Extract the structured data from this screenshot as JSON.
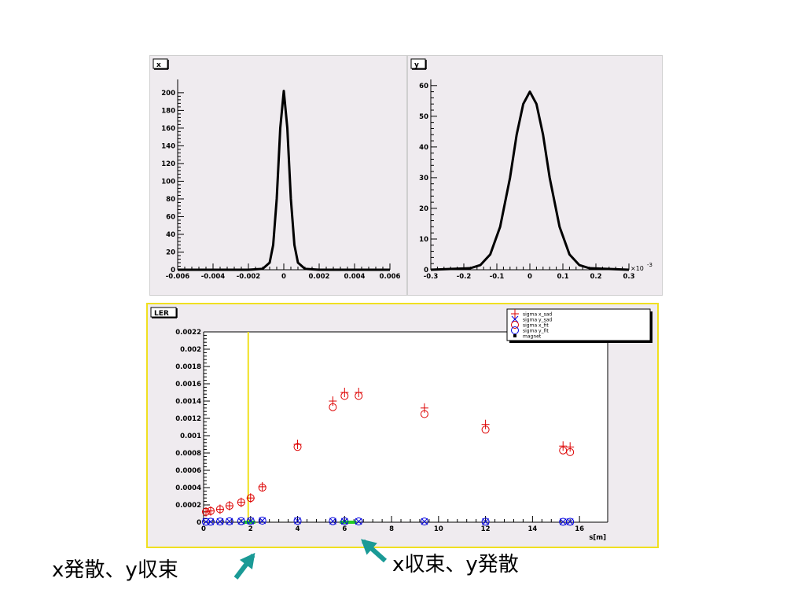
{
  "chart_data": [
    {
      "type": "line",
      "title": "x",
      "xlim": [
        -0.006,
        0.006
      ],
      "ylim": [
        0,
        215
      ],
      "x_ticks": [
        -0.006,
        -0.004,
        -0.002,
        0,
        0.002,
        0.004,
        0.006
      ],
      "x_tick_labels": [
        "-0.006",
        "-0.004",
        "-0.002",
        "0",
        "0.002",
        "0.004",
        "0.006"
      ],
      "y_ticks": [
        0,
        20,
        40,
        60,
        80,
        100,
        120,
        140,
        160,
        180,
        200
      ],
      "y_tick_labels": [
        "0",
        "20",
        "40",
        "60",
        "80",
        "100",
        "120",
        "140",
        "160",
        "180",
        "200"
      ],
      "series": [
        {
          "color": "#000000",
          "x": [
            -0.006,
            -0.002,
            -0.0012,
            -0.0008,
            -0.0006,
            -0.0004,
            -0.0002,
            0,
            0.0002,
            0.0004,
            0.0006,
            0.0008,
            0.0012,
            0.002,
            0.006
          ],
          "y": [
            0,
            0,
            1,
            8,
            28,
            80,
            160,
            202,
            160,
            80,
            28,
            8,
            1,
            0,
            0
          ]
        }
      ]
    },
    {
      "type": "line",
      "title": "y",
      "x_multiplier": "×10",
      "x_multiplier_exp": "-3",
      "xlim": [
        -0.3,
        0.3
      ],
      "ylim": [
        0,
        62
      ],
      "x_ticks": [
        -0.3,
        -0.2,
        -0.1,
        0,
        0.1,
        0.2,
        0.3
      ],
      "x_tick_labels": [
        "-0.3",
        "-0.2",
        "-0.1",
        "0",
        "0.1",
        "0.2",
        "0.3"
      ],
      "y_ticks": [
        0,
        10,
        20,
        30,
        40,
        50,
        60
      ],
      "y_tick_labels": [
        "0",
        "10",
        "20",
        "30",
        "40",
        "50",
        "60"
      ],
      "series": [
        {
          "color": "#000000",
          "x": [
            -0.3,
            -0.18,
            -0.15,
            -0.12,
            -0.09,
            -0.06,
            -0.04,
            -0.02,
            0,
            0.02,
            0.04,
            0.06,
            0.09,
            0.12,
            0.15,
            0.18,
            0.3
          ],
          "y": [
            0,
            0.5,
            1.5,
            5,
            14,
            30,
            44,
            54,
            58,
            54,
            44,
            30,
            14,
            5,
            1.5,
            0.5,
            0
          ]
        }
      ]
    },
    {
      "type": "scatter",
      "title": "LER",
      "xlabel": "s[m]",
      "ylabel": "",
      "xlim": [
        0,
        17.2
      ],
      "ylim": [
        0,
        0.0022
      ],
      "x_ticks": [
        0,
        2,
        4,
        6,
        8,
        10,
        12,
        14,
        16
      ],
      "x_tick_labels": [
        "0",
        "2",
        "4",
        "6",
        "8",
        "10",
        "12",
        "14",
        "16"
      ],
      "y_ticks": [
        0,
        0.0002,
        0.0004,
        0.0006,
        0.0008,
        0.001,
        0.0012,
        0.0014,
        0.0016,
        0.0018,
        0.002,
        0.0022
      ],
      "y_tick_labels": [
        "0",
        "0.0002",
        "0.0004",
        "0.0006",
        "0.0008",
        "0.001",
        "0.0012",
        "0.0014",
        "0.0016",
        "0.0018",
        "0.002",
        "0.0022"
      ],
      "vertical_line": {
        "x": 1.9,
        "color": "#f0e020"
      },
      "magnet_segments": [
        [
          1.7,
          2.2
        ],
        [
          5.8,
          6.5
        ]
      ],
      "legend": {
        "position": "top-right",
        "entries": [
          {
            "label": "sigma x_sad",
            "marker": "plus",
            "color": "#dd0000"
          },
          {
            "label": "sigma y_sad",
            "marker": "cross",
            "color": "#0000dd"
          },
          {
            "label": "sigma x_fit",
            "marker": "circle",
            "color": "#dd0000"
          },
          {
            "label": "sigma y_fit",
            "marker": "circle",
            "color": "#0000dd"
          },
          {
            "label": "magnet",
            "marker": "square",
            "color": "#000000"
          }
        ]
      },
      "series": [
        {
          "name": "sigma x_sad",
          "marker": "plus",
          "color": "#dd0000",
          "x": [
            0.1,
            0.3,
            0.7,
            1.1,
            1.6,
            2.0,
            2.5,
            4.0,
            5.5,
            6.0,
            6.6,
            9.4,
            12.0,
            15.3,
            15.6
          ],
          "y": [
            0.00012,
            0.00013,
            0.00015,
            0.00019,
            0.00023,
            0.00028,
            0.00041,
            0.0009,
            0.0014,
            0.0015,
            0.0015,
            0.00132,
            0.00113,
            0.00088,
            0.00087
          ]
        },
        {
          "name": "sigma x_fit",
          "marker": "circle",
          "color": "#dd0000",
          "x": [
            0.1,
            0.3,
            0.7,
            1.1,
            1.6,
            2.0,
            2.5,
            4.0,
            5.5,
            6.0,
            6.6,
            9.4,
            12.0,
            15.3,
            15.6
          ],
          "y": [
            0.00012,
            0.00013,
            0.00015,
            0.00019,
            0.00023,
            0.00028,
            0.0004,
            0.00087,
            0.00133,
            0.00146,
            0.00146,
            0.00125,
            0.00107,
            0.00083,
            0.00081
          ]
        },
        {
          "name": "sigma y_sad",
          "marker": "cross",
          "color": "#0000dd",
          "x": [
            0.1,
            0.3,
            0.7,
            1.1,
            1.6,
            2.0,
            2.5,
            4.0,
            5.5,
            6.0,
            6.6,
            9.4,
            12.0,
            15.3,
            15.6
          ],
          "y": [
            5e-06,
            6e-06,
            8e-06,
            1e-05,
            1.2e-05,
            1.4e-05,
            1.8e-05,
            1.6e-05,
            1.2e-05,
            1e-05,
            9e-06,
            8e-06,
            6e-06,
            5e-06,
            5e-06
          ]
        },
        {
          "name": "sigma y_fit",
          "marker": "circle",
          "color": "#0000dd",
          "x": [
            0.1,
            0.3,
            0.7,
            1.1,
            1.6,
            2.0,
            2.5,
            4.0,
            5.5,
            6.0,
            6.6,
            9.4,
            12.0,
            15.3,
            15.6
          ],
          "y": [
            5e-06,
            6e-06,
            8e-06,
            1e-05,
            1.2e-05,
            1.4e-05,
            1.8e-05,
            1.6e-05,
            1.2e-05,
            1e-05,
            9e-06,
            8e-06,
            6e-06,
            5e-06,
            5e-06
          ]
        }
      ]
    }
  ],
  "annotations": {
    "left": "x発散、y収束",
    "right": "x収束、y発散",
    "arrow_color": "#1a9a96"
  }
}
